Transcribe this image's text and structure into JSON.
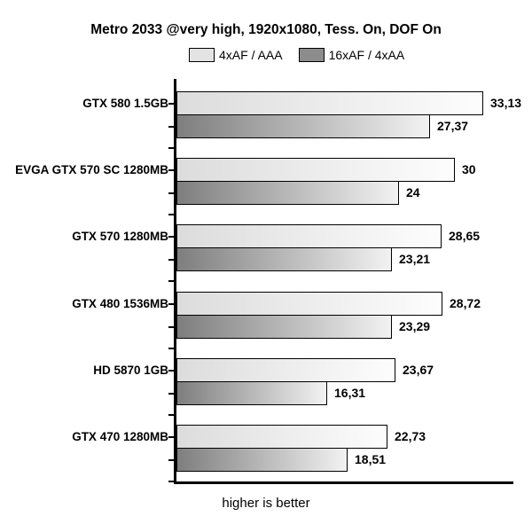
{
  "title": "Metro 2033 @very high, 1920x1080, Tess. On, DOF On",
  "footer": "higher is better",
  "legend": {
    "items": [
      {
        "label": "4xAF / AAA"
      },
      {
        "label": "16xAF / 4xAA"
      }
    ]
  },
  "colors": {
    "background": "#ffffff",
    "text": "#000000",
    "axis": "#000000",
    "bar_border": "#000000",
    "series1_swatch": "#e3e3e3",
    "series2_swatch": "#8c8c8c",
    "series1_gradient_left": "#dcdcdc",
    "series1_gradient_right": "#fdfdfd",
    "series2_gradient_left": "#7e7e7e",
    "series2_gradient_right": "#f2f2f2"
  },
  "chart_data": {
    "type": "bar",
    "orientation": "horizontal",
    "title": "Metro 2033 @very high, 1920x1080, Tess. On, DOF On",
    "note": "higher is better",
    "legend_position": "top-center",
    "grid": false,
    "xlim": [
      0,
      36.5
    ],
    "xlabel": "",
    "ylabel": "",
    "decimal_separator": ",",
    "categories": [
      "GTX 580 1.5GB",
      "EVGA GTX 570 SC 1280MB",
      "GTX 570 1280MB",
      "GTX 480 1536MB",
      "HD 5870 1GB",
      "GTX 470 1280MB"
    ],
    "series": [
      {
        "name": "4xAF / AAA",
        "values": [
          33.13,
          30,
          28.65,
          28.72,
          23.67,
          22.73
        ],
        "labels": [
          "33,13",
          "30",
          "28,65",
          "28,72",
          "23,67",
          "22,73"
        ]
      },
      {
        "name": "16xAF / 4xAA",
        "values": [
          27.37,
          24,
          23.21,
          23.29,
          16.31,
          18.51
        ],
        "labels": [
          "27,37",
          "24",
          "23,21",
          "23,29",
          "16,31",
          "18,51"
        ]
      }
    ]
  }
}
